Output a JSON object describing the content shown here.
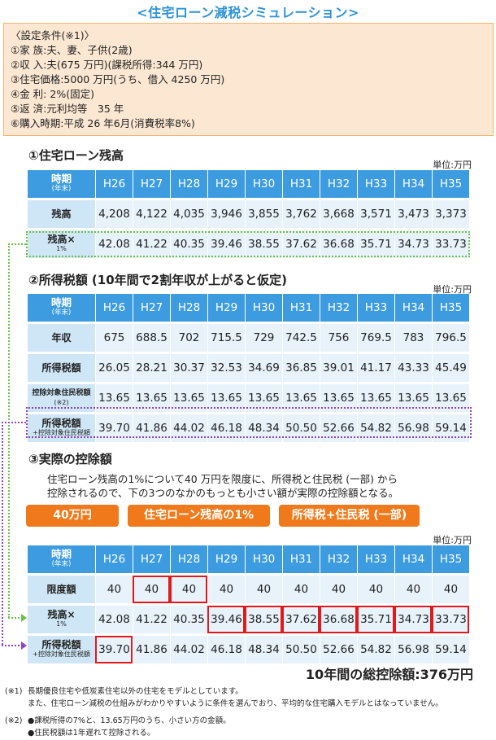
{
  "title": "<住宅ローン減税シミュレーション>",
  "conditions": {
    "heading": "〈設定条件(※1)〉",
    "lines": [
      "①家 族:夫、妻、子供(2歳)",
      "②収 入:夫(675 万円)(課税所得:344 万円)",
      "③住宅価格:5000 万円(うち、借入 4250 万円)",
      "④金 利: 2%(固定)",
      "⑤返 済:元利均等　35 年",
      "⑥購入時期:平成 26 年6月(消費税率8%)"
    ]
  },
  "years": [
    "H26",
    "H27",
    "H28",
    "H29",
    "H30",
    "H31",
    "H32",
    "H33",
    "H34",
    "H35"
  ],
  "header": {
    "label": "時期",
    "sub": "(年末)"
  },
  "unit": "単位:万円",
  "section1": {
    "title": "①住宅ローン残高",
    "rows": [
      {
        "label": "残高",
        "sub": "",
        "values": [
          "4,208",
          "4,122",
          "4,035",
          "3,946",
          "3,855",
          "3,762",
          "3,668",
          "3,571",
          "3,473",
          "3,373"
        ]
      },
      {
        "label": "残高×",
        "sub": "1%",
        "values": [
          "42.08",
          "41.22",
          "40.35",
          "39.46",
          "38.55",
          "37.62",
          "36.68",
          "35.71",
          "34.73",
          "33.73"
        ]
      }
    ]
  },
  "section2": {
    "title": "②所得税額 (10年間で2割年収が上がると仮定)",
    "rows": [
      {
        "label": "年収",
        "sub": "",
        "values": [
          "675",
          "688.5",
          "702",
          "715.5",
          "729",
          "742.5",
          "756",
          "769.5",
          "783",
          "796.5"
        ]
      },
      {
        "label": "所得税額",
        "sub": "",
        "values": [
          "26.05",
          "28.21",
          "30.37",
          "32.53",
          "34.69",
          "36.85",
          "39.01",
          "41.17",
          "43.33",
          "45.49"
        ]
      },
      {
        "label": "控除対象住民税額",
        "sub": "(※2)",
        "values": [
          "13.65",
          "13.65",
          "13.65",
          "13.65",
          "13.65",
          "13.65",
          "13.65",
          "13.65",
          "13.65",
          "13.65"
        ]
      },
      {
        "label": "所得税額",
        "sub": "+控除対象住民税額",
        "values": [
          "39.70",
          "41.86",
          "44.02",
          "46.18",
          "48.34",
          "50.50",
          "52.66",
          "54.82",
          "56.98",
          "59.14"
        ]
      }
    ]
  },
  "section3": {
    "title": "③実際の控除額",
    "desc1": "住宅ローン残高の1%について40 万円を限度に、所得税と住民税 (一部) から",
    "desc2": "控除されるので、下の3つのなかのもっとも小さい額が実際の控除額となる。",
    "pills": [
      "40万円",
      "住宅ローン残高の1%",
      "所得税+住民税 (一部)"
    ],
    "rows": [
      {
        "label": "限度額",
        "sub": "",
        "values": [
          "40",
          "40",
          "40",
          "40",
          "40",
          "40",
          "40",
          "40",
          "40",
          "40"
        ]
      },
      {
        "label": "残高×",
        "sub": "1%",
        "values": [
          "42.08",
          "41.22",
          "40.35",
          "39.46",
          "38.55",
          "37.62",
          "36.68",
          "35.71",
          "34.73",
          "33.73"
        ]
      },
      {
        "label": "所得税額",
        "sub": "+控除対象住民税額",
        "values": [
          "39.70",
          "41.86",
          "44.02",
          "46.18",
          "48.34",
          "50.50",
          "52.66",
          "54.82",
          "56.98",
          "59.14"
        ]
      }
    ],
    "total": "10年間の総控除額:376万円"
  },
  "notes": [
    {
      "mark": "(※1)",
      "text": "長期優良住宅や低炭素住宅以外の住宅をモデルとしています。"
    },
    {
      "mark": "",
      "text": "また、住宅ローン減税の仕組みがわかりやすいように条件を選んでおり、平均的な住宅購入モデルとはなっていません。"
    },
    {
      "mark": "(※2)",
      "text": "●課税所得の7%と、13.65万円のうち、小さい方の金額。"
    },
    {
      "mark": "",
      "text": "●住民税額は1年遅れて控除される。"
    }
  ]
}
